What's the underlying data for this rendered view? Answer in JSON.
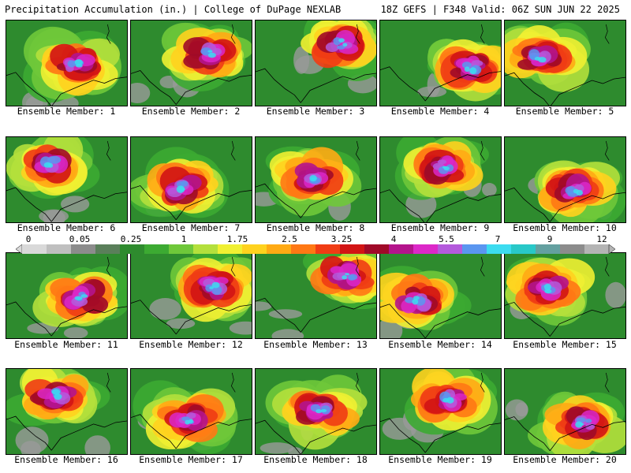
{
  "header": {
    "left": "Precipitation Accumulation (in.) | College of DuPage NEXLAB",
    "right": "18Z GEFS | F348 Valid: 06Z SUN JUN 22 2025"
  },
  "members": [
    "Ensemble Member: 1",
    "Ensemble Member: 2",
    "Ensemble Member: 3",
    "Ensemble Member: 4",
    "Ensemble Member: 5",
    "Ensemble Member: 6",
    "Ensemble Member: 7",
    "Ensemble Member: 8",
    "Ensemble Member: 9",
    "Ensemble Member: 10",
    "Ensemble Member: 11",
    "Ensemble Member: 12",
    "Ensemble Member: 13",
    "Ensemble Member: 14",
    "Ensemble Member: 15",
    "Ensemble Member: 16",
    "Ensemble Member: 17",
    "Ensemble Member: 18",
    "Ensemble Member: 19",
    "Ensemble Member: 20"
  ],
  "colorbar": {
    "labels": [
      "0",
      "0.05",
      "0.25",
      "1",
      "1.75",
      "2.5",
      "3.25",
      "4",
      "5.5",
      "7",
      "9",
      "12"
    ],
    "colors": [
      "#d9d9d9",
      "#bfbfbf",
      "#8c8c8c",
      "#5a7f5a",
      "#2e8b2e",
      "#3caa32",
      "#6fc83a",
      "#b4e03c",
      "#f0f032",
      "#ffd21e",
      "#ffaa14",
      "#ff7814",
      "#f03c14",
      "#d21414",
      "#a00a28",
      "#b4148c",
      "#dc28c8",
      "#b45adc",
      "#5a96f0",
      "#3cdcf0",
      "#28c8c8",
      "#64a0a0",
      "#8c8c8c",
      "#b4b4b4"
    ]
  },
  "palette": {
    "base": "#2e8b2e",
    "border_line": "#000000",
    "panel_border": "#000000"
  }
}
